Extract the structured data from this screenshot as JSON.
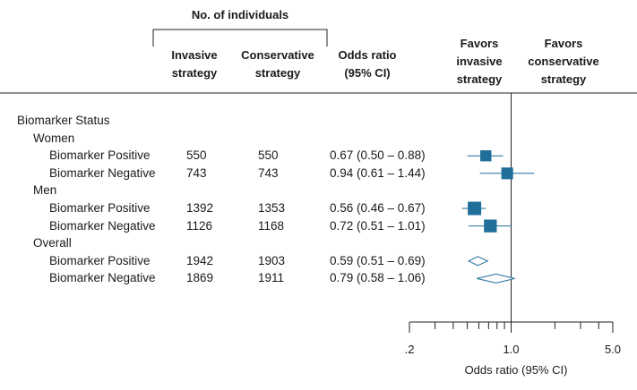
{
  "header": {
    "group_label": "No. of individuals",
    "col_invasive": [
      "Invasive",
      "strategy"
    ],
    "col_conservative": [
      "Conservative",
      "strategy"
    ],
    "col_or": [
      "Odds ratio",
      "(95% CI)"
    ],
    "favors_invasive": [
      "Favors",
      "invasive",
      "strategy"
    ],
    "favors_conservative": [
      "Favors",
      "conservative",
      "strategy"
    ]
  },
  "rows": [
    {
      "label": "Biomarker Status",
      "level": 0
    },
    {
      "label": "Women",
      "level": 1
    },
    {
      "label": "Biomarker Positive",
      "level": 2,
      "invasive": "550",
      "conservative": "550",
      "or_text": "0.67 (0.50 – 0.88)"
    },
    {
      "label": "Biomarker Negative",
      "level": 2,
      "invasive": "743",
      "conservative": "743",
      "or_text": "0.94 (0.61 – 1.44)"
    },
    {
      "label": "Men",
      "level": 1
    },
    {
      "label": "Biomarker Positive",
      "level": 2,
      "invasive": "1392",
      "conservative": "1353",
      "or_text": "0.56 (0.46 – 0.67)"
    },
    {
      "label": "Biomarker Negative",
      "level": 2,
      "invasive": "1126",
      "conservative": "1168",
      "or_text": "0.72 (0.51 – 1.01)"
    },
    {
      "label": "Overall",
      "level": 1
    },
    {
      "label": "Biomarker Positive",
      "level": 2,
      "invasive": "1942",
      "conservative": "1903",
      "or_text": "0.59 (0.51 – 0.69)"
    },
    {
      "label": "Biomarker Negative",
      "level": 2,
      "invasive": "1869",
      "conservative": "1911",
      "or_text": "0.79 (0.58 – 1.06)"
    }
  ],
  "chart_data": {
    "type": "forest",
    "x_scale": "log",
    "xlim": [
      0.2,
      5.0
    ],
    "reference_line": 1.0,
    "tick_labels": [
      ".2",
      "1.0",
      "5.0"
    ],
    "tick_values": [
      0.2,
      1.0,
      5.0
    ],
    "xlabel": "Odds ratio (95% CI)",
    "marker_color": "#1f6f9a",
    "points": [
      {
        "row": 2,
        "or": 0.67,
        "lo": 0.5,
        "hi": 0.88,
        "shape": "square",
        "weight": 550
      },
      {
        "row": 3,
        "or": 0.94,
        "lo": 0.61,
        "hi": 1.44,
        "shape": "square",
        "weight": 743
      },
      {
        "row": 5,
        "or": 0.56,
        "lo": 0.46,
        "hi": 0.67,
        "shape": "square",
        "weight": 1392
      },
      {
        "row": 6,
        "or": 0.72,
        "lo": 0.51,
        "hi": 1.01,
        "shape": "square",
        "weight": 1126
      },
      {
        "row": 8,
        "or": 0.59,
        "lo": 0.51,
        "hi": 0.69,
        "shape": "diamond"
      },
      {
        "row": 9,
        "or": 0.79,
        "lo": 0.58,
        "hi": 1.06,
        "shape": "diamond"
      }
    ]
  }
}
